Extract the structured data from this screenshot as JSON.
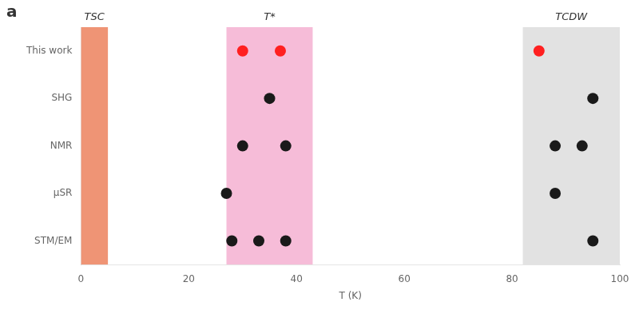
{
  "chart_data": {
    "type": "scatter",
    "x_label": "T (K)",
    "xlim": [
      0,
      100
    ],
    "xticks": [
      0,
      20,
      40,
      60,
      80,
      100
    ],
    "categories": [
      "This work",
      "SHG",
      "NMR",
      "μSR",
      "STM/EM"
    ],
    "grid": false,
    "series": [
      {
        "color": "#FF2020",
        "x": [
          30,
          37,
          85
        ],
        "y": [
          "This work",
          "This work",
          "This work"
        ]
      },
      {
        "color": "#1a1a1a",
        "x": [
          35,
          95,
          30,
          38,
          88,
          93,
          27,
          88,
          28,
          33,
          38,
          95
        ],
        "y": [
          "SHG",
          "SHG",
          "NMR",
          "NMR",
          "NMR",
          "NMR",
          "μSR",
          "μSR",
          "STM/EM",
          "STM/EM",
          "STM/EM",
          "STM/EM"
        ]
      }
    ],
    "bands": [
      {
        "xmin": 0,
        "xmax": 5,
        "label": "TSC",
        "color": "#E8673A"
      },
      {
        "xmin": 27,
        "xmax": 43,
        "label": "T*",
        "color": "#F2A0C8"
      },
      {
        "xmin": 82,
        "xmax": 100,
        "label": "TCDW",
        "color": "#D5D5D5"
      }
    ],
    "annotations": [
      "a"
    ]
  }
}
